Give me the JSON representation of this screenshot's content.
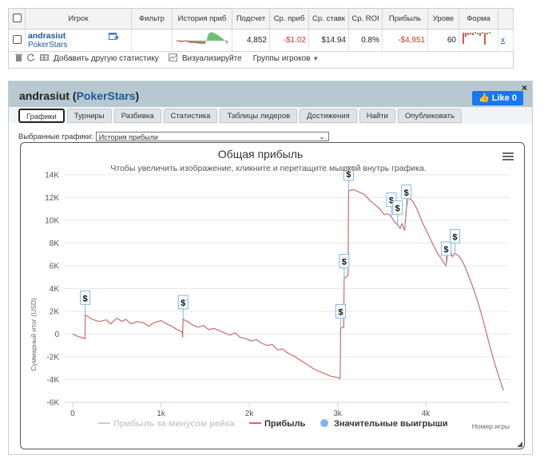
{
  "table": {
    "headers": [
      "Игрок",
      "Фильтр",
      "История приб",
      "Подсчет",
      "Ср. приб",
      "Ср. ставк",
      "Ср. ROI",
      "Прибыль",
      "Урове",
      "Форма"
    ],
    "row": {
      "player": "andrasiut",
      "site": "PokerStars",
      "count": "4,852",
      "avg_profit": "-$1.02",
      "avg_stake": "$14.94",
      "avg_roi": "0.8%",
      "profit": "-$4,951",
      "level": "60",
      "remove": "x"
    }
  },
  "toolbar": {
    "add_stats": "Добавить другую статистику",
    "visualize": "Визуализируйте",
    "player_groups": "Группы игроков"
  },
  "panel": {
    "player": "andrasiut",
    "site": "PokerStars",
    "like": "Like 0",
    "close": "×"
  },
  "tabs": [
    "Графики",
    "Турниры",
    "Разбивка",
    "Статистика",
    "Таблицы лидеров",
    "Достижения",
    "Найти",
    "Опубликовать"
  ],
  "graph_select": {
    "label": "Выбранные графики:",
    "value": "История прибыли"
  },
  "chart_data": {
    "type": "line",
    "title": "Общая прибыль",
    "subtitle": "Чтобы увеличить изображение, кликните и перетащите мышкой внутрь графика.",
    "ylabel": "Суммарный итог (USD)",
    "xlabel": "Номер игры",
    "ylim": [
      -6000,
      14000
    ],
    "xlim": [
      -100,
      4950
    ],
    "yticks": [
      -6000,
      -4000,
      -2000,
      0,
      2000,
      4000,
      6000,
      8000,
      10000,
      12000,
      14000
    ],
    "ytick_labels": [
      "-6K",
      "-4K",
      "-2K",
      "0",
      "2K",
      "4K",
      "6K",
      "8K",
      "10K",
      "12K",
      "14K"
    ],
    "xticks": [
      0,
      1000,
      2000,
      3000,
      4000
    ],
    "xtick_labels": [
      "0",
      "1k",
      "2k",
      "3k",
      "4k"
    ],
    "series": [
      {
        "name": "Прибыль",
        "color": "#c96b6b",
        "points": [
          [
            0,
            0
          ],
          [
            60,
            -200
          ],
          [
            120,
            -350
          ],
          [
            140,
            -400
          ],
          [
            141,
            1700
          ],
          [
            220,
            1300
          ],
          [
            300,
            1100
          ],
          [
            380,
            1250
          ],
          [
            430,
            900
          ],
          [
            500,
            1400
          ],
          [
            560,
            1100
          ],
          [
            600,
            1300
          ],
          [
            660,
            900
          ],
          [
            730,
            1100
          ],
          [
            800,
            1000
          ],
          [
            860,
            700
          ],
          [
            920,
            1000
          ],
          [
            1000,
            1200
          ],
          [
            1060,
            900
          ],
          [
            1120,
            700
          ],
          [
            1180,
            400
          ],
          [
            1240,
            200
          ],
          [
            1245,
            -300
          ],
          [
            1250,
            1300
          ],
          [
            1300,
            1100
          ],
          [
            1360,
            800
          ],
          [
            1420,
            600
          ],
          [
            1480,
            750
          ],
          [
            1540,
            400
          ],
          [
            1600,
            500
          ],
          [
            1660,
            300
          ],
          [
            1720,
            100
          ],
          [
            1780,
            -100
          ],
          [
            1840,
            100
          ],
          [
            1900,
            -300
          ],
          [
            1960,
            -400
          ],
          [
            2020,
            -600
          ],
          [
            2080,
            -500
          ],
          [
            2140,
            -800
          ],
          [
            2200,
            -1000
          ],
          [
            2260,
            -900
          ],
          [
            2320,
            -1400
          ],
          [
            2380,
            -1300
          ],
          [
            2440,
            -1700
          ],
          [
            2500,
            -1900
          ],
          [
            2560,
            -2200
          ],
          [
            2620,
            -2500
          ],
          [
            2680,
            -2800
          ],
          [
            2740,
            -3100
          ],
          [
            2800,
            -3300
          ],
          [
            2860,
            -3500
          ],
          [
            2920,
            -3700
          ],
          [
            2980,
            -3800
          ],
          [
            3030,
            -3900
          ],
          [
            3035,
            500
          ],
          [
            3060,
            600
          ],
          [
            3070,
            600
          ],
          [
            3075,
            4900
          ],
          [
            3110,
            5100
          ],
          [
            3120,
            5200
          ],
          [
            3125,
            12600
          ],
          [
            3180,
            12700
          ],
          [
            3240,
            12500
          ],
          [
            3300,
            12300
          ],
          [
            3360,
            11800
          ],
          [
            3420,
            11400
          ],
          [
            3480,
            11000
          ],
          [
            3530,
            10500
          ],
          [
            3570,
            10600
          ],
          [
            3610,
            10300
          ],
          [
            3650,
            9800
          ],
          [
            3680,
            9600
          ],
          [
            3710,
            9300
          ],
          [
            3730,
            9700
          ],
          [
            3760,
            9100
          ],
          [
            3780,
            11000
          ],
          [
            3800,
            12000
          ],
          [
            3850,
            11700
          ],
          [
            3900,
            11000
          ],
          [
            3940,
            10200
          ],
          [
            3980,
            9500
          ],
          [
            4020,
            8900
          ],
          [
            4060,
            8200
          ],
          [
            4100,
            7600
          ],
          [
            4140,
            7000
          ],
          [
            4180,
            6600
          ],
          [
            4210,
            6200
          ],
          [
            4230,
            6000
          ],
          [
            4250,
            7200
          ],
          [
            4280,
            7300
          ],
          [
            4300,
            6800
          ],
          [
            4330,
            7100
          ],
          [
            4370,
            6900
          ],
          [
            4410,
            6500
          ],
          [
            4450,
            5800
          ],
          [
            4490,
            5000
          ],
          [
            4530,
            4200
          ],
          [
            4570,
            3300
          ],
          [
            4610,
            2300
          ],
          [
            4650,
            1200
          ],
          [
            4690,
            0
          ],
          [
            4730,
            -1200
          ],
          [
            4770,
            -2300
          ],
          [
            4810,
            -3300
          ],
          [
            4850,
            -4300
          ],
          [
            4880,
            -4951
          ]
        ]
      },
      {
        "name": "Прибыль за минусом рейка",
        "color": "#cccccc",
        "visible": false
      },
      {
        "name": "Значительные выигрыши",
        "color": "#7cb5ec",
        "type": "flags",
        "label": "$",
        "points": [
          [
            141,
            1700
          ],
          [
            1250,
            1300
          ],
          [
            3035,
            500
          ],
          [
            3075,
            4900
          ],
          [
            3125,
            12600
          ],
          [
            3610,
            10300
          ],
          [
            3680,
            9600
          ],
          [
            3780,
            11000
          ],
          [
            4230,
            6000
          ],
          [
            4330,
            7100
          ]
        ]
      }
    ],
    "legend": [
      "Прибыль за минусом рейка",
      "Прибыль",
      "Значительные выигрыши"
    ],
    "legend_position": "bottom",
    "grid": true
  }
}
